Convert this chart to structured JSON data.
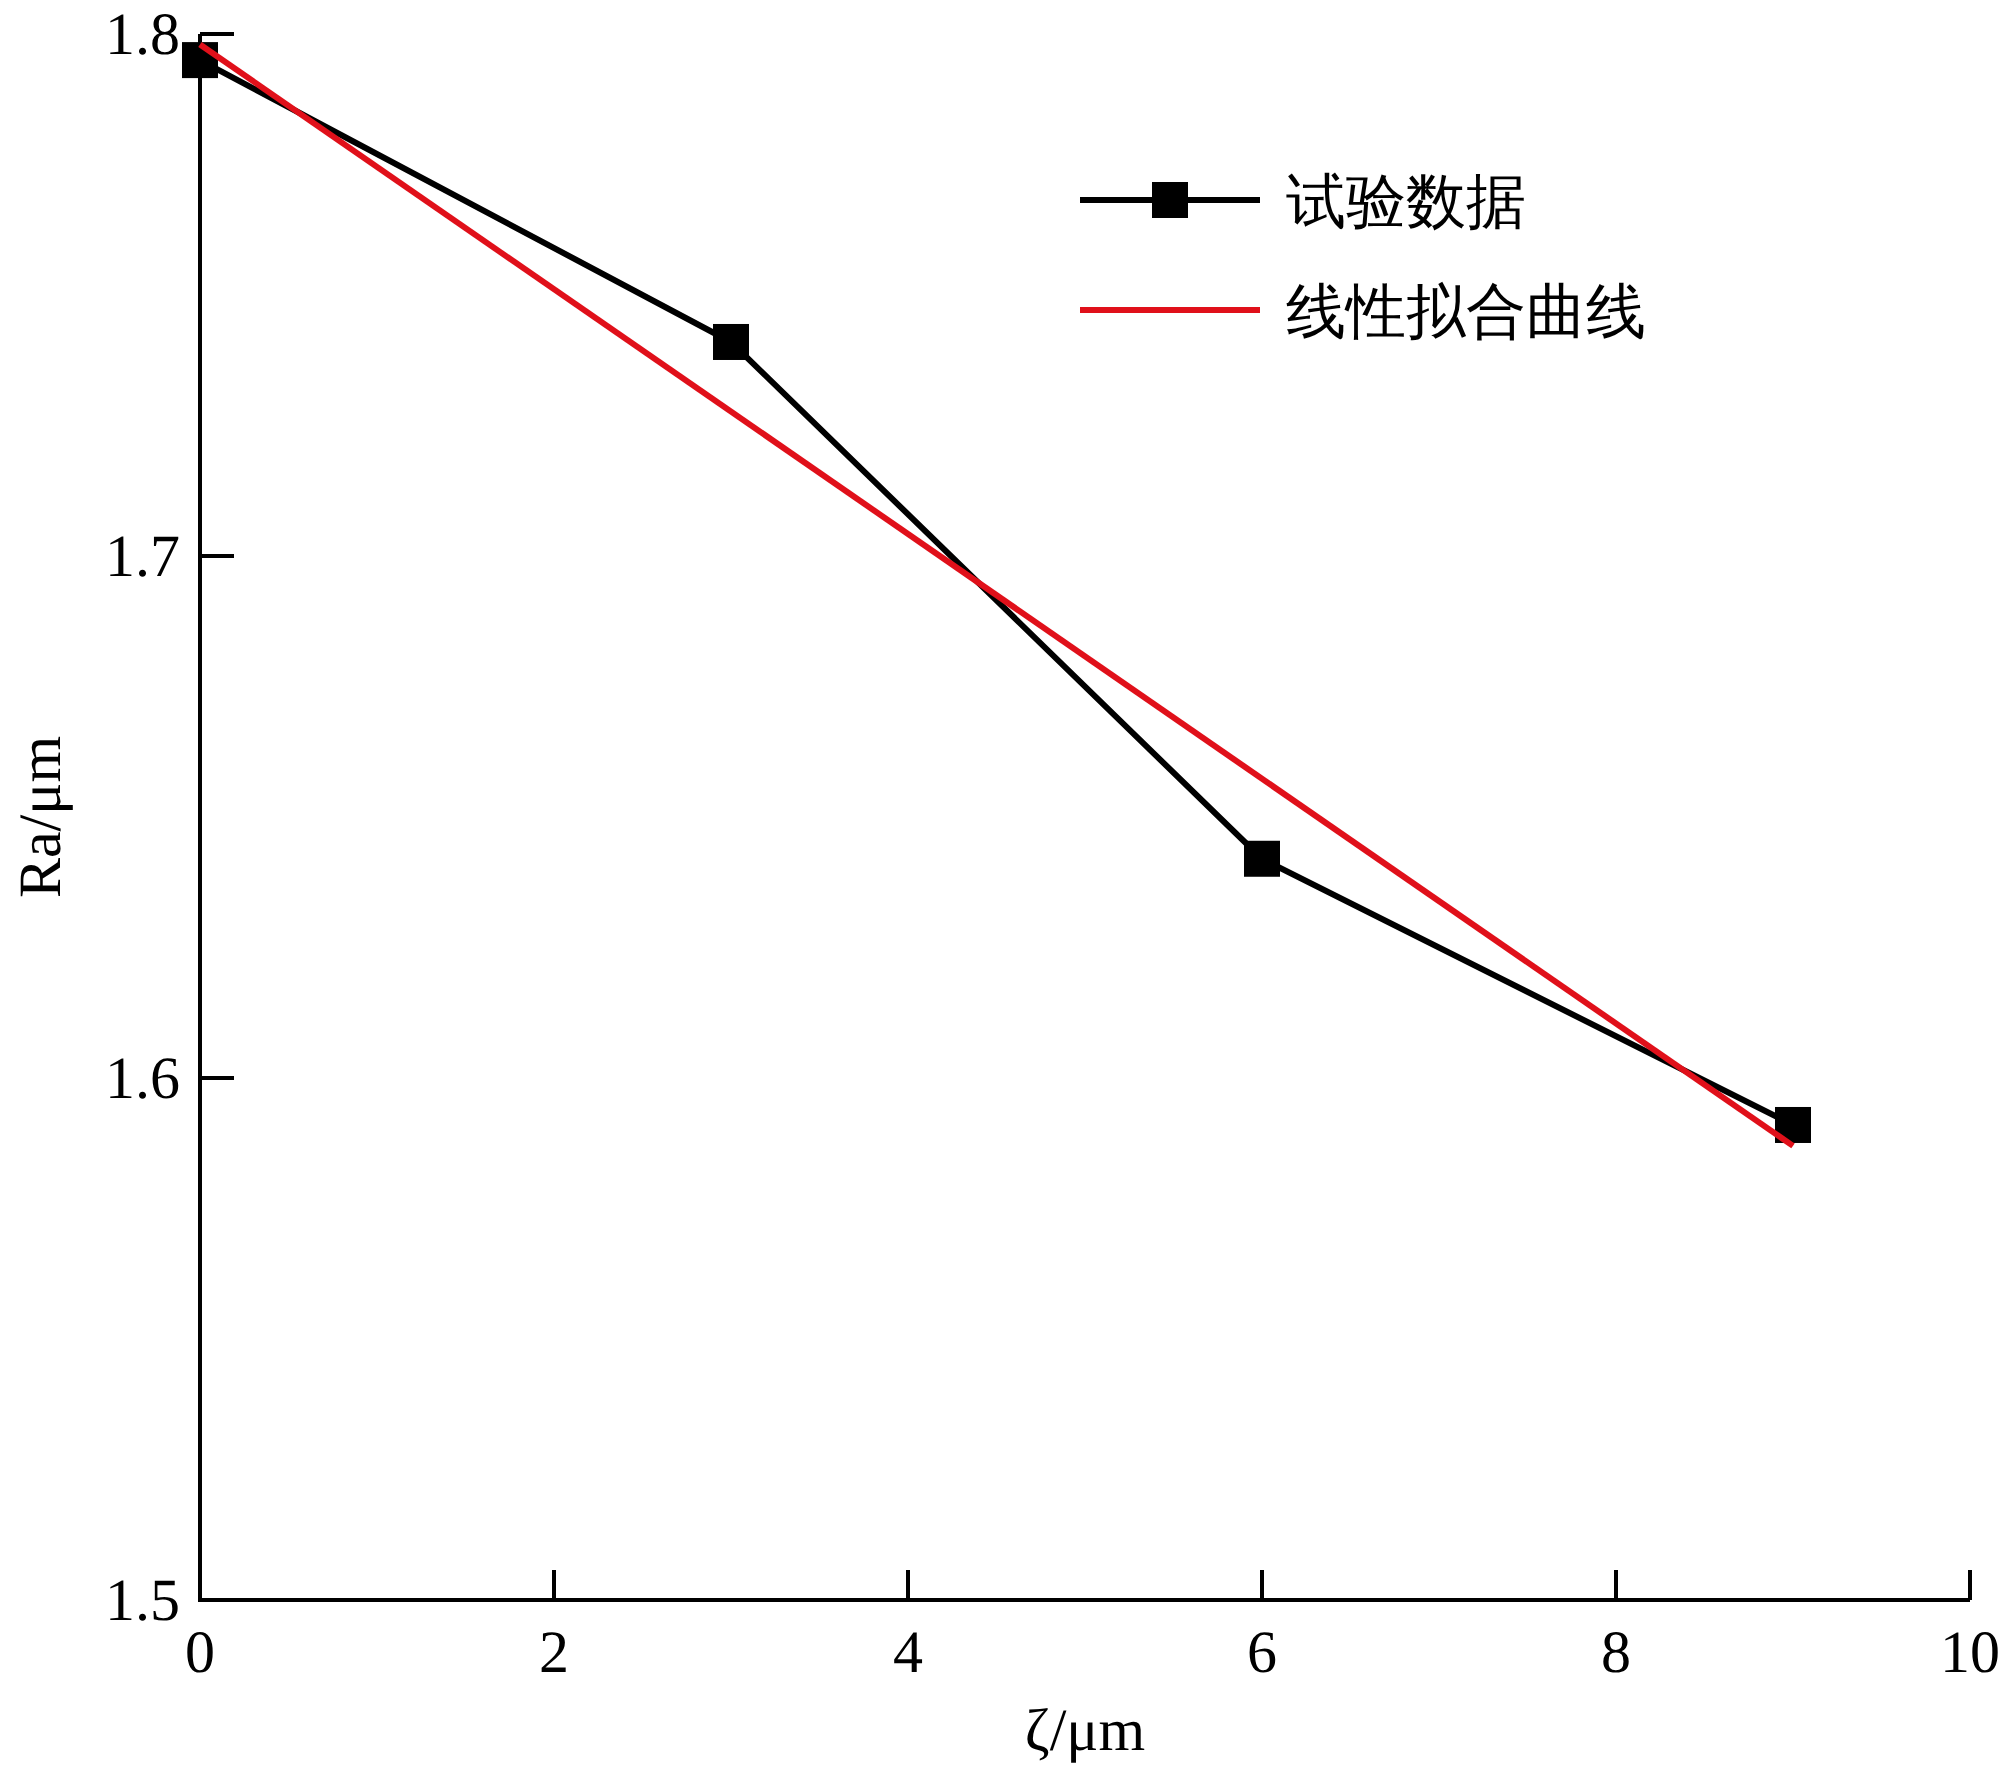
{
  "chart_data": {
    "type": "line",
    "xlabel": "ζ/μm",
    "ylabel": "Ra/μm",
    "xlim": [
      0,
      10
    ],
    "ylim": [
      1.5,
      1.8
    ],
    "xticks": [
      0,
      2,
      4,
      6,
      8,
      10
    ],
    "yticks": [
      1.5,
      1.6,
      1.7,
      1.8
    ],
    "grid": false,
    "legend": "top right",
    "series": [
      {
        "name": "试验数据",
        "color": "#000000",
        "marker": "square",
        "x": [
          0,
          3,
          6,
          9
        ],
        "values": [
          1.795,
          1.741,
          1.642,
          1.591
        ]
      },
      {
        "name": "线性拟合曲线",
        "color": "#e0101a",
        "marker": "none",
        "x": [
          0,
          9
        ],
        "values": [
          1.798,
          1.587
        ]
      }
    ]
  }
}
